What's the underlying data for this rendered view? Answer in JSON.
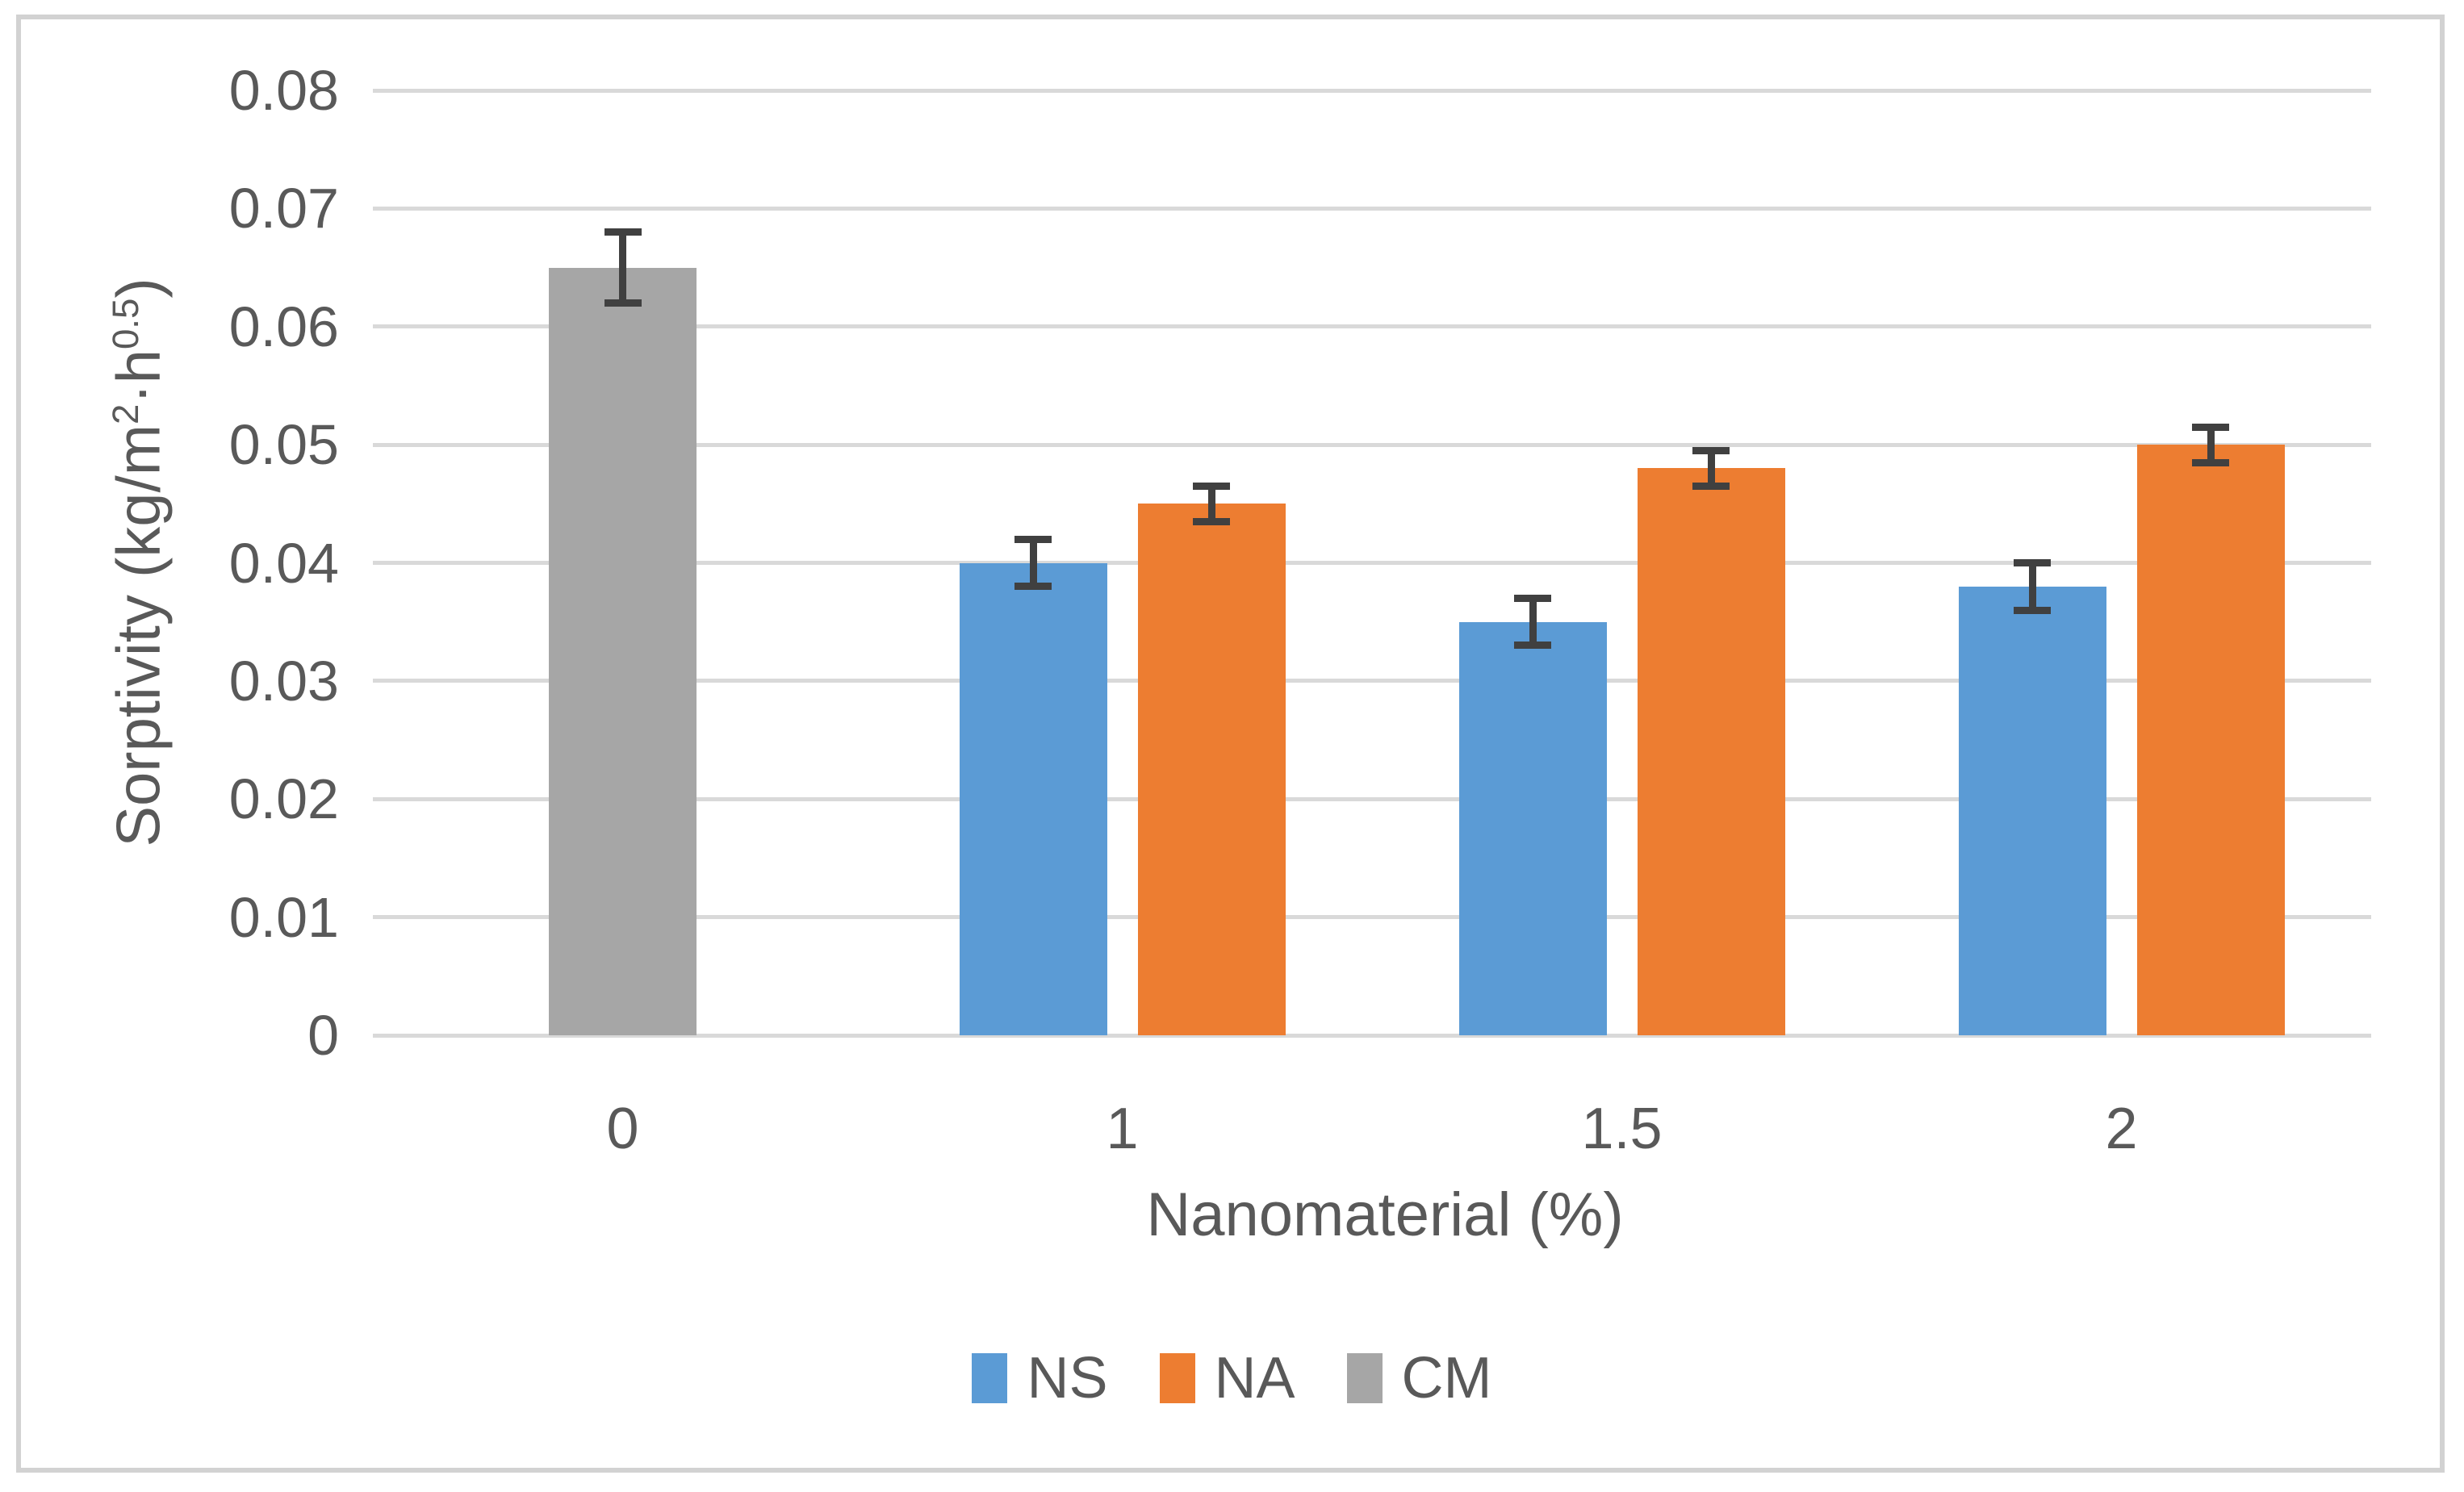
{
  "figure": {
    "background": "#FFFFFF",
    "border_color": "#D2D2D2"
  },
  "chart_data": {
    "type": "bar",
    "title": "",
    "xlabel": "Nanomaterial (%)",
    "ylabel": "Sorptivity (kg/m^2·h^0.5)",
    "ylabel_parts": {
      "t1": "Sorptivity (kg/m",
      "s1": "2",
      "t2": "·h",
      "s2": "0.5",
      "t3": ")"
    },
    "categories": [
      "0",
      "1",
      "1.5",
      "2"
    ],
    "y_ticks": [
      "0",
      "0.01",
      "0.02",
      "0.03",
      "0.04",
      "0.05",
      "0.06",
      "0.07",
      "0.08"
    ],
    "ylim": [
      0,
      0.08
    ],
    "ytick_step": 0.01,
    "grid": true,
    "legend_position": "bottom",
    "series": [
      {
        "name": "NS",
        "color": "#5B9BD5",
        "values": [
          null,
          0.04,
          0.035,
          0.038
        ],
        "errors": [
          null,
          0.002,
          0.002,
          0.002
        ]
      },
      {
        "name": "NA",
        "color": "#ED7D31",
        "values": [
          null,
          0.045,
          0.048,
          0.05
        ],
        "errors": [
          null,
          0.0015,
          0.0015,
          0.0015
        ]
      },
      {
        "name": "CM",
        "color": "#A6A6A6",
        "values": [
          0.065,
          null,
          null,
          null
        ],
        "errors": [
          0.003,
          null,
          null,
          null
        ]
      }
    ],
    "error_bar_color": "#404040",
    "gridline_color": "#D9D9D9",
    "axis_line_color": "#D9D9D9",
    "text_color": "#595959"
  }
}
